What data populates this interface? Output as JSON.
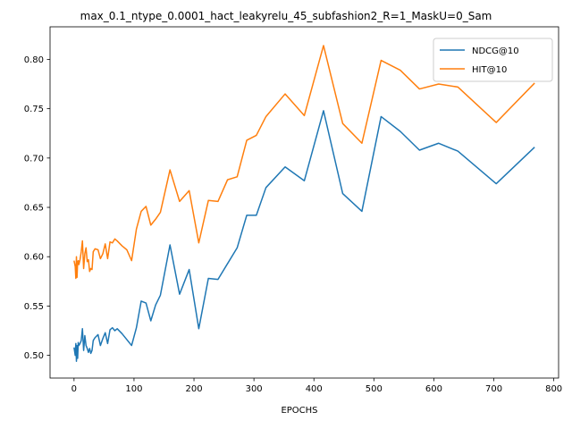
{
  "chart_data": {
    "type": "line",
    "title": "max_0.1_ntype_0.0001_hact_leakyrelu_45_subfashion2_R=1_MaskU=0_Sam",
    "xlabel": "EPOCHS",
    "ylabel": "",
    "xlim": [
      -40,
      808
    ],
    "ylim": [
      0.477,
      0.833
    ],
    "xticks": [
      0,
      100,
      200,
      300,
      400,
      500,
      600,
      700,
      800
    ],
    "yticks": [
      0.5,
      0.55,
      0.6,
      0.65,
      0.7,
      0.75,
      0.8
    ],
    "ytick_labels": [
      "0.50",
      "0.55",
      "0.60",
      "0.65",
      "0.70",
      "0.75",
      "0.80"
    ],
    "grid": false,
    "legend": "top-right",
    "series": [
      {
        "name": "NDCG@10",
        "color": "#1f77b4",
        "x": [
          0,
          2,
          3,
          4,
          5,
          6,
          7,
          8,
          10,
          12,
          14,
          16,
          18,
          20,
          22,
          24,
          26,
          28,
          30,
          32,
          35,
          40,
          44,
          48,
          52,
          56,
          60,
          64,
          68,
          72,
          80,
          88,
          96,
          104,
          112,
          120,
          128,
          136,
          144,
          160,
          176,
          192,
          208,
          224,
          240,
          256,
          272,
          288,
          304,
          320,
          352,
          384,
          416,
          448,
          480,
          512,
          544,
          576,
          608,
          640,
          704,
          768
        ],
        "y": [
          0.508,
          0.5,
          0.512,
          0.494,
          0.51,
          0.497,
          0.513,
          0.51,
          0.512,
          0.515,
          0.527,
          0.505,
          0.52,
          0.51,
          0.507,
          0.503,
          0.507,
          0.502,
          0.505,
          0.515,
          0.518,
          0.521,
          0.51,
          0.517,
          0.523,
          0.512,
          0.526,
          0.528,
          0.525,
          0.527,
          0.522,
          0.516,
          0.51,
          0.528,
          0.555,
          0.553,
          0.535,
          0.551,
          0.561,
          0.612,
          0.562,
          0.587,
          0.527,
          0.578,
          0.577,
          0.593,
          0.609,
          0.642,
          0.642,
          0.67,
          0.691,
          0.677,
          0.748,
          0.664,
          0.646,
          0.742,
          0.727,
          0.708,
          0.715,
          0.707,
          0.674,
          0.711
        ]
      },
      {
        "name": "HIT@10",
        "color": "#ff7f0e",
        "x": [
          0,
          2,
          3,
          4,
          5,
          6,
          7,
          8,
          10,
          12,
          14,
          16,
          18,
          20,
          22,
          24,
          26,
          28,
          30,
          32,
          35,
          40,
          44,
          48,
          52,
          56,
          60,
          64,
          68,
          72,
          80,
          88,
          96,
          104,
          112,
          120,
          128,
          136,
          144,
          160,
          176,
          192,
          208,
          224,
          240,
          256,
          272,
          288,
          304,
          320,
          352,
          384,
          416,
          448,
          480,
          512,
          544,
          576,
          608,
          640,
          704,
          768
        ],
        "y": [
          0.596,
          0.59,
          0.578,
          0.6,
          0.579,
          0.595,
          0.596,
          0.592,
          0.597,
          0.605,
          0.616,
          0.588,
          0.603,
          0.609,
          0.595,
          0.597,
          0.585,
          0.588,
          0.587,
          0.605,
          0.608,
          0.607,
          0.598,
          0.603,
          0.613,
          0.598,
          0.615,
          0.614,
          0.618,
          0.616,
          0.611,
          0.607,
          0.596,
          0.628,
          0.646,
          0.651,
          0.632,
          0.638,
          0.645,
          0.688,
          0.656,
          0.667,
          0.614,
          0.657,
          0.656,
          0.678,
          0.681,
          0.718,
          0.723,
          0.742,
          0.765,
          0.743,
          0.814,
          0.735,
          0.715,
          0.799,
          0.789,
          0.77,
          0.775,
          0.772,
          0.736,
          0.776
        ]
      }
    ]
  }
}
